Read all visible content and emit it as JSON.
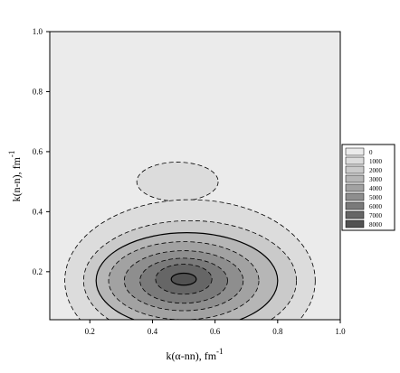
{
  "chart_data": {
    "type": "contour",
    "xlabel": "k(α-nn), fm",
    "xlabel_sup": "-1",
    "ylabel": "k(n-n), fm",
    "ylabel_sup": "-1",
    "xlim": [
      0.072,
      1.0
    ],
    "ylim": [
      0.04,
      1.0
    ],
    "xticks": [
      0.2,
      0.4,
      0.6,
      0.8,
      {
        "value": 1,
        "label": "1.0"
      }
    ],
    "yticks": [
      0.2,
      0.4,
      0.6,
      0.8,
      {
        "value": 1,
        "label": "1.0"
      }
    ],
    "levels": [
      0,
      1000,
      2000,
      3000,
      4000,
      5000,
      6000,
      7000,
      8000
    ],
    "colors": [
      "#ebebeb",
      "#dcdcdc",
      "#cacaca",
      "#b6b6b6",
      "#a2a2a2",
      "#8e8e8e",
      "#7a7a7a",
      "#666666",
      "#525252"
    ],
    "contours": [
      {
        "level": 1000,
        "cx": 0.48,
        "cy": 0.5,
        "rx": 0.13,
        "ry": 0.065,
        "dashed": true
      },
      {
        "level": 1000,
        "cx": 0.52,
        "cy": 0.17,
        "rx": 0.4,
        "ry": 0.27,
        "dashed": true
      },
      {
        "level": 2000,
        "cx": 0.52,
        "cy": 0.17,
        "rx": 0.34,
        "ry": 0.2,
        "dashed": true
      },
      {
        "level": 3000,
        "cx": 0.51,
        "cy": 0.17,
        "rx": 0.29,
        "ry": 0.16,
        "dashed": false
      },
      {
        "level": 4000,
        "cx": 0.5,
        "cy": 0.17,
        "rx": 0.24,
        "ry": 0.13,
        "dashed": true
      },
      {
        "level": 5000,
        "cx": 0.5,
        "cy": 0.17,
        "rx": 0.19,
        "ry": 0.1,
        "dashed": true
      },
      {
        "level": 6000,
        "cx": 0.5,
        "cy": 0.17,
        "rx": 0.14,
        "ry": 0.075,
        "dashed": true
      },
      {
        "level": 7000,
        "cx": 0.5,
        "cy": 0.175,
        "rx": 0.09,
        "ry": 0.05,
        "dashed": true
      },
      {
        "level": 8000,
        "cx": 0.5,
        "cy": 0.175,
        "rx": 0.04,
        "ry": 0.02,
        "dashed": false
      }
    ]
  }
}
